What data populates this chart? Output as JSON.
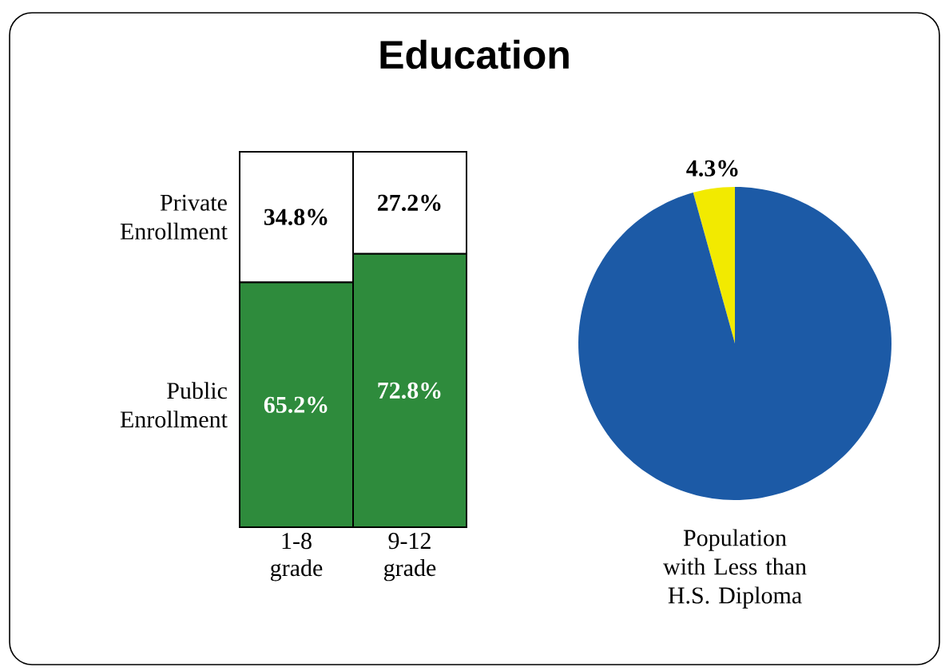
{
  "chart_data": [
    {
      "type": "bar",
      "title": "Education",
      "categories": [
        "1-8 grade",
        "9-12 grade"
      ],
      "stacked": true,
      "tick_labels": "x",
      "series": [
        {
          "name": "Public Enrollment",
          "color": "#2e8b3c",
          "values": [
            65.2,
            72.8
          ],
          "value_labels": [
            "65.2%",
            "72.8%"
          ]
        },
        {
          "name": "Private Enrollment",
          "color": "#ffffff",
          "values": [
            34.8,
            27.2
          ],
          "value_labels": [
            "34.8%",
            "27.2%"
          ]
        }
      ]
    },
    {
      "type": "pie",
      "xlabel": "Population with Less than H.S. Diploma",
      "categories": [
        null,
        null
      ],
      "values": [
        4.3,
        95.7
      ],
      "colors": [
        "#f2ea00",
        "#1c5aa6"
      ],
      "value_labels": [
        "4.3%",
        null
      ]
    }
  ]
}
